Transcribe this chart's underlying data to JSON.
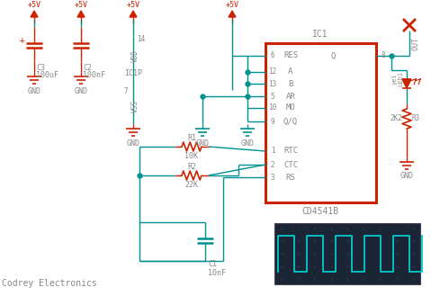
{
  "bg_color": "#ffffff",
  "teal": "#009090",
  "red": "#cc2200",
  "gray": "#888888",
  "osc_bg": "#1a2535",
  "osc_line": "#00cccc",
  "osc_grid": "#2a3a50",
  "figsize": [
    4.79,
    3.29
  ],
  "dpi": 100,
  "watermark": "Codrey Electronics",
  "ic_label": "IC1",
  "ic_sublabel": "CD4541B",
  "pin_labels_left": [
    "RES",
    "A",
    "B",
    "AR",
    "MO",
    "Q/Q"
  ],
  "pin_nums_left": [
    "6",
    "12",
    "13",
    "5",
    "10",
    "9"
  ],
  "pin_labels_right": [
    "RTC",
    "CTC",
    "RS"
  ],
  "pin_nums_right": [
    "1",
    "2",
    "3"
  ],
  "q_label": "Q",
  "pin8": "8"
}
